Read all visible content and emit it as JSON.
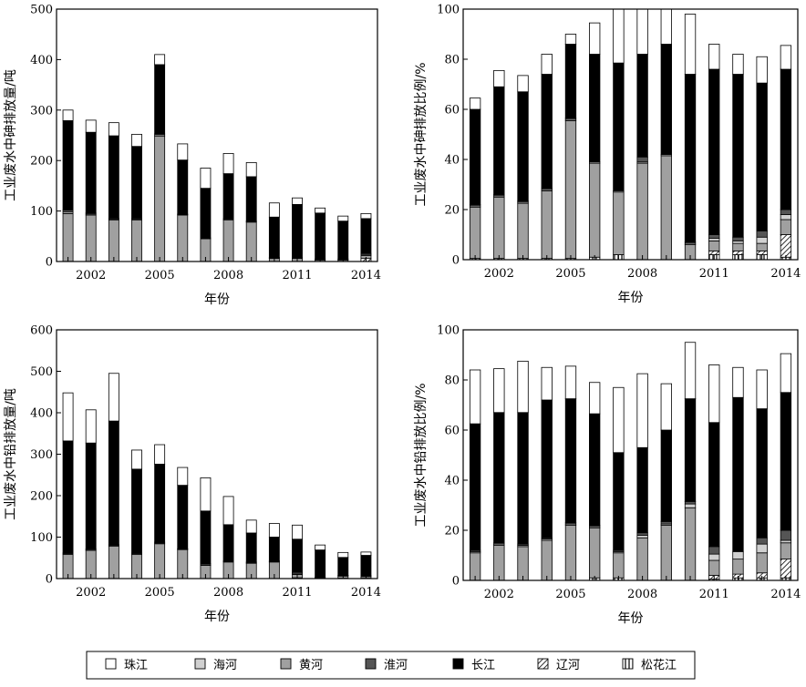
{
  "legend": {
    "items": [
      {
        "label": "珠江",
        "pattern": "white"
      },
      {
        "label": "海河",
        "pattern": "lightgray"
      },
      {
        "label": "黄河",
        "pattern": "midgray"
      },
      {
        "label": "淮河",
        "pattern": "darkgray"
      },
      {
        "label": "长江",
        "pattern": "black"
      },
      {
        "label": "辽河",
        "pattern": "hatch"
      },
      {
        "label": "松花江",
        "pattern": "vlines"
      }
    ]
  },
  "colors": {
    "white": "#ffffff",
    "lightgray": "#d0d0d0",
    "midgray": "#a0a0a0",
    "darkgray": "#555555",
    "black": "#000000",
    "edge": "#000000"
  },
  "chart_data": [
    {
      "type": "bar",
      "stacked": true,
      "xlabel": "年份",
      "ylabel": "工业废水中砷排放量/吨",
      "ylim": [
        0,
        500
      ],
      "yticks": [
        0,
        100,
        200,
        300,
        400,
        500
      ],
      "xtick_labels": [
        "2002",
        "2005",
        "2008",
        "2011",
        "2014"
      ],
      "x": [
        2001,
        2002,
        2003,
        2004,
        2005,
        2006,
        2007,
        2008,
        2009,
        2010,
        2011,
        2012,
        2013,
        2014
      ],
      "stack_order": [
        "松花江",
        "辽河",
        "黄河",
        "海河",
        "淮河",
        "长江",
        "珠江"
      ],
      "series": [
        {
          "name": "松花江",
          "values": [
            0,
            0,
            0,
            0,
            0,
            0,
            0,
            0,
            0,
            0,
            0,
            0,
            0,
            0
          ]
        },
        {
          "name": "辽河",
          "values": [
            0,
            0,
            0,
            0,
            0,
            0,
            0,
            0,
            0,
            0,
            0,
            0,
            0,
            6
          ]
        },
        {
          "name": "黄河",
          "values": [
            95,
            92,
            82,
            82,
            248,
            92,
            45,
            82,
            78,
            6,
            6,
            3,
            3,
            6
          ]
        },
        {
          "name": "海河",
          "values": [
            3,
            2,
            2,
            2,
            3,
            1,
            1,
            2,
            1,
            1,
            1,
            1,
            1,
            2
          ]
        },
        {
          "name": "淮河",
          "values": [
            4,
            2,
            2,
            2,
            2,
            1,
            1,
            1,
            1,
            1,
            1,
            1,
            1,
            2
          ]
        },
        {
          "name": "长江",
          "values": [
            177,
            160,
            163,
            142,
            137,
            107,
            98,
            89,
            88,
            80,
            105,
            91,
            75,
            69
          ]
        },
        {
          "name": "珠江",
          "values": [
            21,
            24,
            26,
            24,
            20,
            32,
            40,
            40,
            28,
            28,
            13,
            10,
            10,
            10
          ]
        }
      ]
    },
    {
      "type": "bar",
      "stacked": true,
      "xlabel": "年份",
      "ylabel": "工业废水中砷排放比例/%",
      "ylim": [
        0,
        100
      ],
      "yticks": [
        0,
        20,
        40,
        60,
        80,
        100
      ],
      "xtick_labels": [
        "2002",
        "2005",
        "2008",
        "2011",
        "2014"
      ],
      "x": [
        2001,
        2002,
        2003,
        2004,
        2005,
        2006,
        2007,
        2008,
        2009,
        2010,
        2011,
        2012,
        2013,
        2014
      ],
      "stack_order": [
        "松花江",
        "辽河",
        "黄河",
        "海河",
        "淮河",
        "长江",
        "珠江"
      ],
      "series": [
        {
          "name": "松花江",
          "values": [
            0.5,
            0.5,
            0.5,
            0.5,
            0.5,
            1,
            2,
            0,
            0,
            0,
            2,
            2,
            2,
            1
          ]
        },
        {
          "name": "辽河",
          "values": [
            0,
            0,
            0,
            0,
            0,
            0,
            0,
            0,
            0,
            0,
            1.5,
            1.5,
            1.5,
            9
          ]
        },
        {
          "name": "黄河",
          "values": [
            20.5,
            24.5,
            22,
            27,
            55,
            37.5,
            25,
            38.5,
            41.5,
            6,
            4,
            3,
            3,
            6
          ]
        },
        {
          "name": "海河",
          "values": [
            0.5,
            0.5,
            0.5,
            0.5,
            0.5,
            0.5,
            0.5,
            0.5,
            0.5,
            0.5,
            1,
            1,
            2.5,
            2
          ]
        },
        {
          "name": "淮河",
          "values": [
            0.5,
            0.5,
            0.5,
            0.5,
            0.5,
            0,
            0,
            2,
            0,
            0.5,
            1.5,
            1.5,
            2.5,
            2
          ]
        },
        {
          "name": "长江",
          "values": [
            38,
            43,
            43.5,
            45.5,
            29.5,
            43,
            51,
            41,
            44,
            67,
            66,
            65,
            59,
            56
          ]
        },
        {
          "name": "珠江",
          "values": [
            4.5,
            6.5,
            6.5,
            8,
            4,
            12.5,
            21.5,
            18,
            14,
            24,
            10,
            8,
            10.5,
            9.5
          ]
        }
      ]
    },
    {
      "type": "bar",
      "stacked": true,
      "xlabel": "年份",
      "ylabel": "工业废水中铅排放量/吨",
      "ylim": [
        0,
        600
      ],
      "yticks": [
        0,
        100,
        200,
        300,
        400,
        500,
        600
      ],
      "xtick_labels": [
        "2002",
        "2005",
        "2008",
        "2011",
        "2014"
      ],
      "x": [
        2001,
        2002,
        2003,
        2004,
        2005,
        2006,
        2007,
        2008,
        2009,
        2010,
        2011,
        2012,
        2013,
        2014
      ],
      "stack_order": [
        "松花江",
        "辽河",
        "黄河",
        "海河",
        "淮河",
        "长江",
        "珠江"
      ],
      "series": [
        {
          "name": "松花江",
          "values": [
            0,
            0,
            0,
            0,
            0,
            0,
            0,
            0,
            0,
            0,
            0,
            0,
            0,
            0
          ]
        },
        {
          "name": "辽河",
          "values": [
            0,
            0,
            0,
            0,
            0,
            0,
            0,
            0,
            0,
            0,
            2,
            0,
            1,
            1
          ]
        },
        {
          "name": "黄河",
          "values": [
            58,
            68,
            78,
            58,
            84,
            70,
            32,
            40,
            37,
            40,
            8,
            1,
            5,
            4
          ]
        },
        {
          "name": "海河",
          "values": [
            2,
            2,
            2,
            2,
            2,
            1,
            1,
            1,
            1,
            1,
            1,
            1,
            1,
            1
          ]
        },
        {
          "name": "淮河",
          "values": [
            2,
            2,
            2,
            2,
            2,
            1,
            3,
            2,
            2,
            2,
            4,
            1,
            1,
            1
          ]
        },
        {
          "name": "长江",
          "values": [
            270,
            255,
            298,
            202,
            188,
            153,
            127,
            87,
            70,
            57,
            80,
            66,
            43,
            49
          ]
        },
        {
          "name": "珠江",
          "values": [
            116,
            80,
            115,
            46,
            47,
            43,
            80,
            68,
            31,
            33,
            34,
            12,
            12,
            8
          ]
        }
      ]
    },
    {
      "type": "bar",
      "stacked": true,
      "xlabel": "年份",
      "ylabel": "工业废水中铅排放比例/%",
      "ylim": [
        0,
        100
      ],
      "yticks": [
        0,
        20,
        40,
        60,
        80,
        100
      ],
      "xtick_labels": [
        "2002",
        "2005",
        "2008",
        "2011",
        "2014"
      ],
      "x": [
        2001,
        2002,
        2003,
        2004,
        2005,
        2006,
        2007,
        2008,
        2009,
        2010,
        2011,
        2012,
        2013,
        2014
      ],
      "stack_order": [
        "松花江",
        "辽河",
        "黄河",
        "海河",
        "淮河",
        "长江",
        "珠江"
      ],
      "series": [
        {
          "name": "松花江",
          "values": [
            0,
            0,
            0,
            0,
            0,
            1,
            1,
            0,
            0,
            0,
            0.5,
            1,
            1,
            1
          ]
        },
        {
          "name": "辽河",
          "values": [
            0,
            0,
            0,
            0,
            0,
            0,
            0,
            0,
            0,
            0,
            1.5,
            1.5,
            2,
            7.5
          ]
        },
        {
          "name": "黄河",
          "values": [
            11,
            14,
            13.5,
            16,
            22,
            20,
            10,
            17,
            22,
            29,
            6,
            6,
            8,
            6.5
          ]
        },
        {
          "name": "海河",
          "values": [
            0.5,
            0.5,
            0.5,
            0.5,
            0.5,
            0.5,
            0.5,
            1,
            0.5,
            1.5,
            2.5,
            3,
            3.5,
            1
          ]
        },
        {
          "name": "淮河",
          "values": [
            0.5,
            0.5,
            0.5,
            0.5,
            0.5,
            0.5,
            0.5,
            1,
            1,
            1,
            3,
            0,
            2.5,
            4
          ]
        },
        {
          "name": "长江",
          "values": [
            50.5,
            52,
            52.5,
            55,
            49.5,
            44.5,
            39,
            34,
            36.5,
            41,
            49.5,
            61.5,
            51.5,
            55
          ]
        },
        {
          "name": "珠江",
          "values": [
            21.5,
            17.5,
            20.5,
            13,
            13,
            12.5,
            26,
            29.5,
            18.5,
            22.5,
            23,
            12,
            15.5,
            15.5
          ]
        }
      ]
    }
  ]
}
